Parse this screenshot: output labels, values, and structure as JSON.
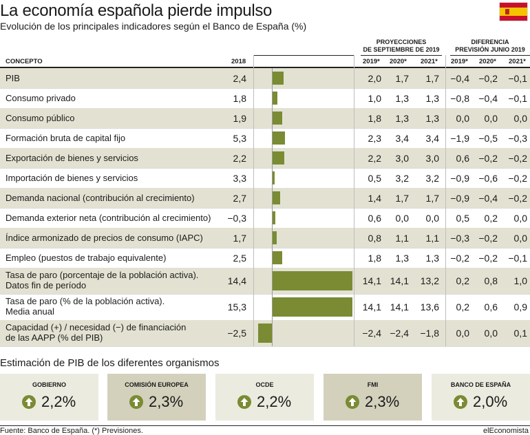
{
  "header": {
    "title": "La economía española pierde impulso",
    "subtitle": "Evolución de los principales indicadores según el Banco de España (%)"
  },
  "table": {
    "group_labels": {
      "projections": "PROYECCIONES DE SEPTIEMBRE DE 2019",
      "projections_l1": "PROYECCIONES",
      "projections_l2": "DE SEPTIEMBRE DE 2019",
      "difference_l1": "DIFERENCIA",
      "difference_l2": "PREVISIÓN JUNIO 2019"
    },
    "columns": {
      "concept": "CONCEPTO",
      "y2018": "2018",
      "p2019": "2019*",
      "p2020": "2020*",
      "p2021": "2021*",
      "d2019": "2019*",
      "d2020": "2020*",
      "d2021": "2021*"
    },
    "rows": [
      {
        "label": "PIB",
        "v2018": "2,4",
        "p2019": "2,0",
        "p2020": "1,7",
        "p2021": "1,7",
        "d2019": "−0,4",
        "d2020": "−0,2",
        "d2021": "−0,1"
      },
      {
        "label": "Consumo privado",
        "v2018": "1,8",
        "p2019": "1,0",
        "p2020": "1,3",
        "p2021": "1,3",
        "d2019": "−0,8",
        "d2020": "−0,4",
        "d2021": "−0,1"
      },
      {
        "label": "Consumo público",
        "v2018": "1,9",
        "p2019": "1,8",
        "p2020": "1,3",
        "p2021": "1,3",
        "d2019": "0,0",
        "d2020": "0,0",
        "d2021": "0,0"
      },
      {
        "label": "Formación bruta de capital fijo",
        "v2018": "5,3",
        "p2019": "2,3",
        "p2020": "3,4",
        "p2021": "3,4",
        "d2019": "−1,9",
        "d2020": "−0,5",
        "d2021": "−0,3"
      },
      {
        "label": "Exportación de bienes y servicios",
        "v2018": "2,2",
        "p2019": "2,2",
        "p2020": "3,0",
        "p2021": "3,0",
        "d2019": "0,6",
        "d2020": "−0,2",
        "d2021": "−0,2"
      },
      {
        "label": "Importación de bienes y servicios",
        "v2018": "3,3",
        "p2019": "0,5",
        "p2020": "3,2",
        "p2021": "3,2",
        "d2019": "−0,9",
        "d2020": "−0,6",
        "d2021": "−0,2"
      },
      {
        "label": "Demanda nacional (contribución al crecimiento)",
        "v2018": "2,7",
        "p2019": "1,4",
        "p2020": "1,7",
        "p2021": "1,7",
        "d2019": "−0,9",
        "d2020": "−0,4",
        "d2021": "−0,2"
      },
      {
        "label": "Demanda exterior neta (contribución al crecimiento)",
        "v2018": "−0,3",
        "p2019": "0,6",
        "p2020": "0,0",
        "p2021": "0,0",
        "d2019": "0,5",
        "d2020": "0,2",
        "d2021": "0,0"
      },
      {
        "label": "Índice armonizado de precios de consumo (IAPC)",
        "v2018": "1,7",
        "p2019": "0,8",
        "p2020": "1,1",
        "p2021": "1,1",
        "d2019": "−0,3",
        "d2020": "−0,2",
        "d2021": "0,0"
      },
      {
        "label": "Empleo (puestos de trabajo equivalente)",
        "v2018": "2,5",
        "p2019": "1,8",
        "p2020": "1,3",
        "p2021": "1,3",
        "d2019": "−0,2",
        "d2020": "−0,2",
        "d2021": "−0,1"
      },
      {
        "label": "Tasa de paro (porcentaje de la población activa).",
        "label2": "Datos fin de período",
        "v2018": "14,4",
        "p2019": "14,1",
        "p2020": "14,1",
        "p2021": "13,2",
        "d2019": "0,2",
        "d2020": "0,8",
        "d2021": "1,0"
      },
      {
        "label": "Tasa de paro (% de la población activa).",
        "label2": "Media anual",
        "v2018": "15,3",
        "p2019": "14,1",
        "p2020": "14,1",
        "p2021": "13,6",
        "d2019": "0,2",
        "d2020": "0,6",
        "d2021": "0,9"
      },
      {
        "label": "Capacidad (+) / necesidad (−) de financiación",
        "label2": "de las AAPP (% del PIB)",
        "v2018": "−2,5",
        "p2019": "−2,4",
        "p2020": "−2,4",
        "p2021": "−1,8",
        "d2019": "0,0",
        "d2020": "0,0",
        "d2021": "0,1"
      }
    ]
  },
  "chart_data": {
    "type": "bar",
    "orientation": "horizontal",
    "categories": [
      "PIB",
      "Consumo privado",
      "Consumo público",
      "Formación bruta de capital fijo",
      "Exportación de bienes y servicios",
      "Importación de bienes y servicios",
      "Demanda nacional (contribución al crecimiento)",
      "Demanda exterior neta (contribución al crecimiento)",
      "Índice armonizado de precios de consumo (IAPC)",
      "Empleo (puestos de trabajo equivalente)",
      "Tasa de paro (porcentaje de la población activa). Datos fin de período",
      "Tasa de paro (% de la población activa). Media anual",
      "Capacidad (+) / necesidad (−) de financiación de las AAPP (% del PIB)"
    ],
    "values": [
      2.0,
      1.0,
      1.8,
      2.3,
      2.2,
      0.5,
      1.4,
      0.6,
      0.8,
      1.8,
      14.1,
      14.1,
      -2.4
    ],
    "bar_color": "#7a8b33",
    "xlim": [
      -2.5,
      14.5
    ]
  },
  "estimates": {
    "title": "Estimación de PIB de los diferentes organismos",
    "cards": [
      {
        "label": "GOBIERNO",
        "value": "2,2%",
        "bg": "#ecebe0"
      },
      {
        "label": "COMISIÓN EUROPEA",
        "value": "2,3%",
        "bg": "#d3d1bc"
      },
      {
        "label": "OCDE",
        "value": "2,2%",
        "bg": "#ecebe0"
      },
      {
        "label": "FMI",
        "value": "2,3%",
        "bg": "#d3d1bc"
      },
      {
        "label": "BANCO DE ESPAÑA",
        "value": "2,0%",
        "bg": "#ecebe0"
      }
    ],
    "icon": "arrow-up-icon"
  },
  "footer": {
    "source": "Fuente: Banco de España. (*) Previsiones.",
    "brand": "elEconomista"
  },
  "colors": {
    "shade": "#e3e2d2",
    "bar": "#7a8b33",
    "flag_red": "#c8102e",
    "flag_yellow": "#f5c400"
  }
}
